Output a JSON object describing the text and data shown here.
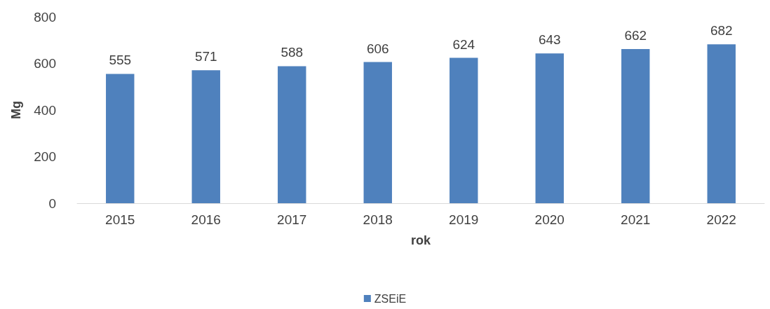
{
  "chart_data": {
    "type": "bar",
    "xlabel": "rok",
    "ylabel": "Mg",
    "categories": [
      "2015",
      "2016",
      "2017",
      "2018",
      "2019",
      "2020",
      "2021",
      "2022"
    ],
    "series": [
      {
        "name": "ZSEiE",
        "color": "#4f81bd",
        "values": [
          555,
          571,
          588,
          606,
          624,
          643,
          662,
          682
        ]
      }
    ],
    "ylim": [
      0,
      800
    ],
    "yticks": [
      0,
      200,
      400,
      600,
      800
    ],
    "grid": false,
    "legend": "bottom",
    "data_labels": true
  }
}
